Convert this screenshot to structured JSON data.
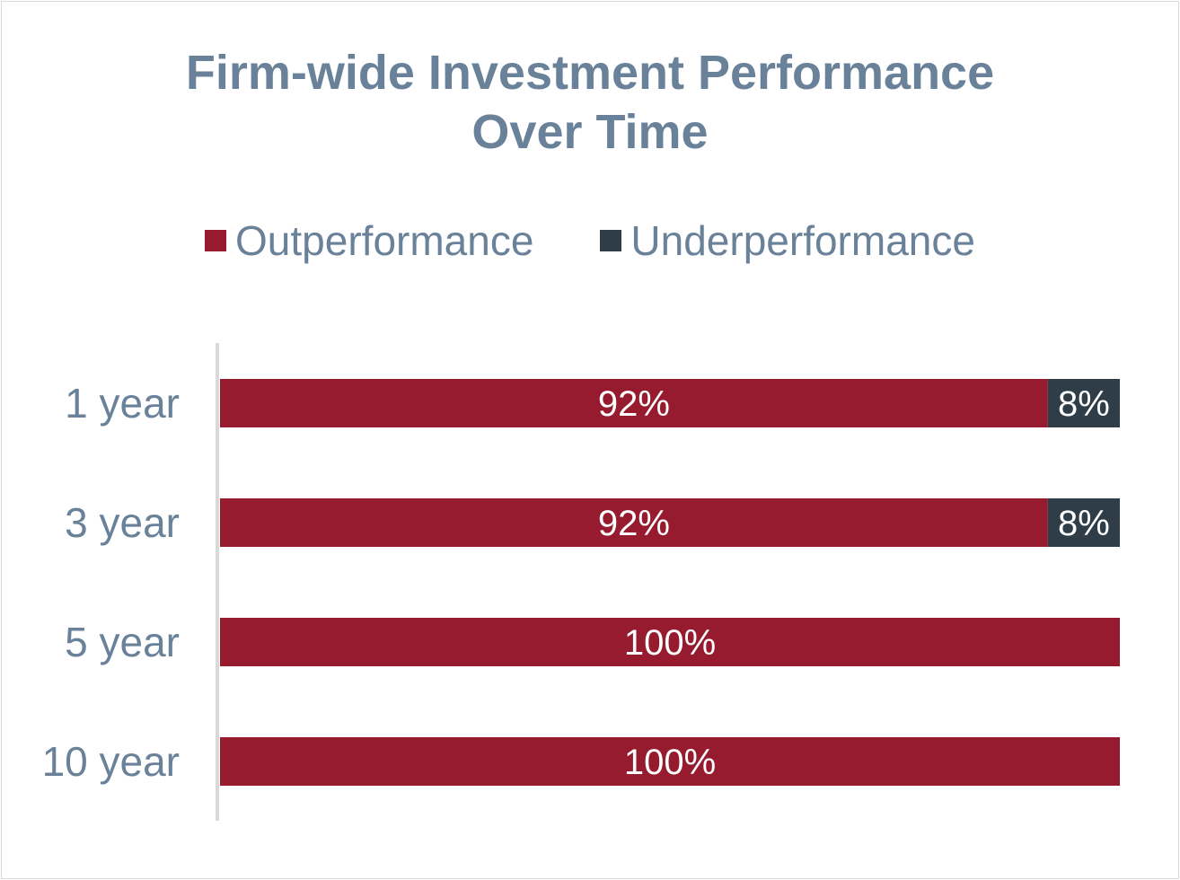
{
  "chart_data": {
    "type": "bar",
    "orientation": "horizontal",
    "stacked": true,
    "title_line1": "Firm-wide Investment Performance",
    "title_line2": "Over Time",
    "categories": [
      "1 year",
      "3 year",
      "5 year",
      "10 year"
    ],
    "series": [
      {
        "name": "Outperformance",
        "values": [
          92,
          92,
          100,
          100
        ],
        "labels": [
          "92%",
          "92%",
          "100%",
          "100%"
        ],
        "color": "#961b2f"
      },
      {
        "name": "Underperformance",
        "values": [
          8,
          8,
          0,
          0
        ],
        "labels": [
          "8%",
          "8%",
          "",
          ""
        ],
        "color": "#2e3d48"
      }
    ],
    "xlim": [
      0,
      100
    ],
    "legend_position": "top",
    "grid": false
  }
}
